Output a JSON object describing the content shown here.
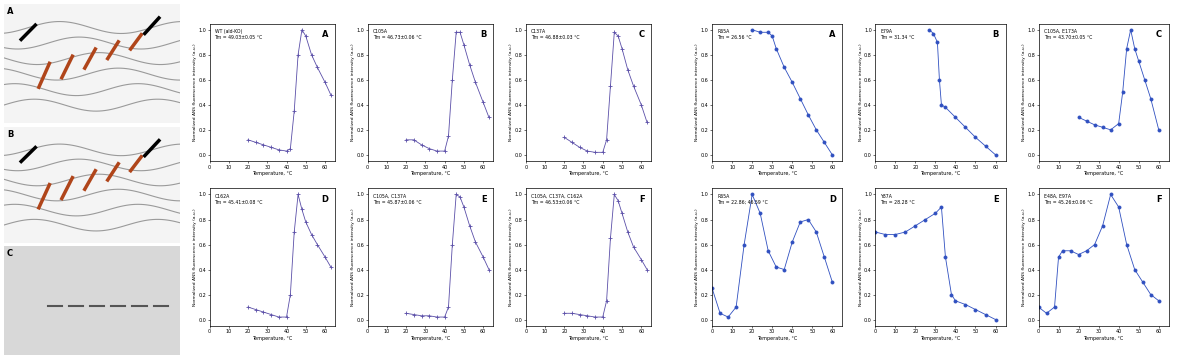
{
  "images": [
    {
      "panel": "A"
    },
    {
      "panel": "B"
    },
    {
      "panel": "C"
    }
  ],
  "chart_data": [
    {
      "type": "line",
      "panel": "A",
      "label": "WT (ald-KO)",
      "annotation": "Tm = 49.03±0.05 °C",
      "color": "#5b4fa8",
      "marker": "+",
      "xlabel": "Temperature, °C",
      "ylabel": "Normalized ANS fluorescence intensity (a.u.)",
      "x": [
        20,
        24,
        28,
        32,
        36,
        40,
        42,
        44,
        46,
        48,
        50,
        53,
        56,
        60,
        63
      ],
      "values": [
        0.12,
        0.1,
        0.08,
        0.06,
        0.04,
        0.03,
        0.05,
        0.35,
        0.8,
        1.0,
        0.95,
        0.8,
        0.7,
        0.58,
        0.48
      ],
      "xlim": [
        0,
        65
      ],
      "xticks": [
        0,
        10,
        20,
        30,
        40,
        50,
        60
      ],
      "ylim": [
        -0.05,
        1.05
      ],
      "yticks": [
        {
          "value": 0,
          "label": "0.0"
        },
        {
          "value": 0.2,
          "label": "0.2"
        },
        {
          "value": 0.4,
          "label": "0.4"
        },
        {
          "value": 0.6,
          "label": "0.6"
        },
        {
          "value": 0.8,
          "label": "0.8"
        },
        {
          "value": 1.0,
          "label": "1.0"
        }
      ]
    },
    {
      "type": "line",
      "panel": "B",
      "label": "C105A",
      "annotation": "Tm = 46.73±0.06 °C",
      "color": "#5b4fa8",
      "marker": "+",
      "xlabel": "Temperature, °C",
      "ylabel": "Normalized ANS fluorescence intensity (a.u.)",
      "x": [
        20,
        24,
        28,
        32,
        36,
        40,
        42,
        44,
        46,
        48,
        50,
        53,
        56,
        60,
        63
      ],
      "values": [
        0.12,
        0.12,
        0.08,
        0.05,
        0.03,
        0.03,
        0.15,
        0.6,
        0.98,
        0.98,
        0.88,
        0.72,
        0.58,
        0.42,
        0.3
      ],
      "xlim": [
        0,
        65
      ],
      "xticks": [
        0,
        10,
        20,
        30,
        40,
        50,
        60
      ],
      "ylim": [
        -0.05,
        1.05
      ],
      "yticks": [
        {
          "value": 0,
          "label": "0.0"
        },
        {
          "value": 0.2,
          "label": "0.2"
        },
        {
          "value": 0.4,
          "label": "0.4"
        },
        {
          "value": 0.6,
          "label": "0.6"
        },
        {
          "value": 0.8,
          "label": "0.8"
        },
        {
          "value": 1.0,
          "label": "1.0"
        }
      ]
    },
    {
      "type": "line",
      "panel": "C",
      "label": "C137A",
      "annotation": "Tm = 46.88±0.03 °C",
      "color": "#5b4fa8",
      "marker": "+",
      "xlabel": "Temperature, °C",
      "ylabel": "Normalized ANS fluorescence intensity (a.u.)",
      "x": [
        20,
        24,
        28,
        32,
        36,
        40,
        42,
        44,
        46,
        48,
        50,
        53,
        56,
        60,
        63
      ],
      "values": [
        0.14,
        0.1,
        0.06,
        0.03,
        0.02,
        0.02,
        0.12,
        0.55,
        0.98,
        0.95,
        0.85,
        0.68,
        0.55,
        0.4,
        0.26
      ],
      "xlim": [
        0,
        65
      ],
      "xticks": [
        0,
        10,
        20,
        30,
        40,
        50,
        60
      ],
      "ylim": [
        -0.05,
        1.05
      ],
      "yticks": [
        {
          "value": 0,
          "label": "0.0"
        },
        {
          "value": 0.2,
          "label": "0.2"
        },
        {
          "value": 0.4,
          "label": "0.4"
        },
        {
          "value": 0.6,
          "label": "0.6"
        },
        {
          "value": 0.8,
          "label": "0.8"
        },
        {
          "value": 1.0,
          "label": "1.0"
        }
      ]
    },
    {
      "type": "line",
      "panel": "D",
      "label": "C162A",
      "annotation": "Tm = 45.41±0.08 °C",
      "color": "#5b4fa8",
      "marker": "+",
      "xlabel": "Temperature, °C",
      "ylabel": "Normalized ANS fluorescence intensity (a.u.)",
      "x": [
        20,
        24,
        28,
        32,
        36,
        40,
        42,
        44,
        46,
        48,
        50,
        53,
        56,
        60,
        63
      ],
      "values": [
        0.1,
        0.08,
        0.06,
        0.04,
        0.02,
        0.02,
        0.2,
        0.7,
        1.0,
        0.88,
        0.78,
        0.68,
        0.6,
        0.5,
        0.42
      ],
      "xlim": [
        0,
        65
      ],
      "xticks": [
        0,
        10,
        20,
        30,
        40,
        50,
        60
      ],
      "ylim": [
        -0.05,
        1.05
      ],
      "yticks": [
        {
          "value": 0,
          "label": "0.0"
        },
        {
          "value": 0.2,
          "label": "0.2"
        },
        {
          "value": 0.4,
          "label": "0.4"
        },
        {
          "value": 0.6,
          "label": "0.6"
        },
        {
          "value": 0.8,
          "label": "0.8"
        },
        {
          "value": 1.0,
          "label": "1.0"
        }
      ]
    },
    {
      "type": "line",
      "panel": "E",
      "label": "C105A, C137A",
      "annotation": "Tm = 45.87±0.06 °C",
      "color": "#5b4fa8",
      "marker": "+",
      "xlabel": "Temperature, °C",
      "ylabel": "Normalized ANS fluorescence intensity (a.u.)",
      "x": [
        20,
        24,
        28,
        32,
        36,
        40,
        42,
        44,
        46,
        48,
        50,
        53,
        56,
        60,
        63
      ],
      "values": [
        0.05,
        0.04,
        0.03,
        0.03,
        0.02,
        0.02,
        0.1,
        0.6,
        1.0,
        0.98,
        0.9,
        0.75,
        0.62,
        0.5,
        0.4
      ],
      "xlim": [
        0,
        65
      ],
      "xticks": [
        0,
        10,
        20,
        30,
        40,
        50,
        60
      ],
      "ylim": [
        -0.05,
        1.05
      ],
      "yticks": [
        {
          "value": 0,
          "label": "0.0"
        },
        {
          "value": 0.2,
          "label": "0.2"
        },
        {
          "value": 0.4,
          "label": "0.4"
        },
        {
          "value": 0.6,
          "label": "0.6"
        },
        {
          "value": 0.8,
          "label": "0.8"
        },
        {
          "value": 1.0,
          "label": "1.0"
        }
      ]
    },
    {
      "type": "line",
      "panel": "F",
      "label": "C105A, C137A, C162A",
      "annotation": "Tm = 46.53±0.06 °C",
      "color": "#5b4fa8",
      "marker": "+",
      "xlabel": "Temperature, °C",
      "ylabel": "Normalized ANS fluorescence intensity (a.u.)",
      "x": [
        20,
        24,
        28,
        32,
        36,
        40,
        42,
        44,
        46,
        48,
        50,
        53,
        56,
        60,
        63
      ],
      "values": [
        0.05,
        0.05,
        0.04,
        0.03,
        0.02,
        0.02,
        0.15,
        0.65,
        1.0,
        0.95,
        0.85,
        0.7,
        0.58,
        0.48,
        0.4
      ],
      "xlim": [
        0,
        65
      ],
      "xticks": [
        0,
        10,
        20,
        30,
        40,
        50,
        60
      ],
      "ylim": [
        -0.05,
        1.05
      ],
      "yticks": [
        {
          "value": 0,
          "label": "0.0"
        },
        {
          "value": 0.2,
          "label": "0.2"
        },
        {
          "value": 0.4,
          "label": "0.4"
        },
        {
          "value": 0.6,
          "label": "0.6"
        },
        {
          "value": 0.8,
          "label": "0.8"
        },
        {
          "value": 1.0,
          "label": "1.0"
        }
      ]
    },
    {
      "type": "line",
      "panel": "A",
      "label": "R65A",
      "annotation": "Tm = 26.56 °C",
      "color": "#3050c0",
      "marker": "o",
      "xlabel": "Temperature, °C",
      "ylabel": "Normalized ANS fluorescence intensity (a.u.)",
      "x": [
        20,
        24,
        28,
        30,
        32,
        36,
        40,
        44,
        48,
        52,
        56,
        60
      ],
      "values": [
        1.0,
        0.98,
        0.98,
        0.95,
        0.85,
        0.7,
        0.58,
        0.45,
        0.32,
        0.2,
        0.1,
        0.0
      ],
      "xlim": [
        0,
        65
      ],
      "xticks": [
        0,
        10,
        20,
        30,
        40,
        50,
        60
      ],
      "ylim": [
        -0.05,
        1.05
      ],
      "yticks": [
        {
          "value": 0,
          "label": "0.0"
        },
        {
          "value": 0.2,
          "label": "0.2"
        },
        {
          "value": 0.4,
          "label": "0.4"
        },
        {
          "value": 0.6,
          "label": "0.6"
        },
        {
          "value": 0.8,
          "label": "0.8"
        },
        {
          "value": 1.0,
          "label": "1.0"
        }
      ]
    },
    {
      "type": "line",
      "panel": "B",
      "label": "E79A",
      "annotation": "Tm = 31.34 °C",
      "color": "#3050c0",
      "marker": "o",
      "xlabel": "Temperature, °C",
      "ylabel": "Normalized ANS fluorescence intensity (a.u.)",
      "x": [
        27,
        29,
        31,
        32,
        33,
        35,
        40,
        45,
        50,
        55,
        60
      ],
      "values": [
        1.0,
        0.97,
        0.9,
        0.6,
        0.4,
        0.38,
        0.3,
        0.22,
        0.14,
        0.07,
        0.0
      ],
      "xlim": [
        0,
        65
      ],
      "xticks": [
        0,
        10,
        20,
        30,
        40,
        50,
        60
      ],
      "ylim": [
        -0.05,
        1.05
      ],
      "yticks": [
        {
          "value": 0,
          "label": "0.0"
        },
        {
          "value": 0.2,
          "label": "0.2"
        },
        {
          "value": 0.4,
          "label": "0.4"
        },
        {
          "value": 0.6,
          "label": "0.6"
        },
        {
          "value": 0.8,
          "label": "0.8"
        },
        {
          "value": 1.0,
          "label": "1.0"
        }
      ]
    },
    {
      "type": "line",
      "panel": "C",
      "label": "C105A, E173A",
      "annotation": "Tm = 43.70±0.05 °C",
      "color": "#3050c0",
      "marker": "o",
      "xlabel": "Temperature, °C",
      "ylabel": "Normalized ANS fluorescence intensity (a.u.)",
      "x": [
        20,
        24,
        28,
        32,
        36,
        40,
        42,
        44,
        46,
        48,
        50,
        53,
        56,
        60
      ],
      "values": [
        0.3,
        0.27,
        0.24,
        0.22,
        0.2,
        0.25,
        0.5,
        0.85,
        1.0,
        0.85,
        0.75,
        0.6,
        0.45,
        0.2
      ],
      "xlim": [
        0,
        65
      ],
      "xticks": [
        0,
        10,
        20,
        30,
        40,
        50,
        60
      ],
      "ylim": [
        -0.05,
        1.05
      ],
      "yticks": [
        {
          "value": 0,
          "label": "0.0"
        },
        {
          "value": 0.2,
          "label": "0.2"
        },
        {
          "value": 0.4,
          "label": "0.4"
        },
        {
          "value": 0.6,
          "label": "0.6"
        },
        {
          "value": 0.8,
          "label": "0.8"
        },
        {
          "value": 1.0,
          "label": "1.0"
        }
      ]
    },
    {
      "type": "line",
      "panel": "D",
      "label": "R65A",
      "annotation": "Tm = 22.86; 46.59 °C",
      "color": "#3050c0",
      "marker": "o",
      "xlabel": "Temperature, °C",
      "ylabel": "Normalized ANS fluorescence intensity (a.u.)",
      "x": [
        0,
        4,
        8,
        12,
        16,
        20,
        24,
        28,
        32,
        36,
        40,
        44,
        48,
        52,
        56,
        60
      ],
      "values": [
        0.25,
        0.05,
        0.02,
        0.1,
        0.6,
        1.0,
        0.85,
        0.55,
        0.42,
        0.4,
        0.62,
        0.78,
        0.8,
        0.7,
        0.5,
        0.3
      ],
      "xlim": [
        0,
        65
      ],
      "xticks": [
        0,
        10,
        20,
        30,
        40,
        50,
        60
      ],
      "ylim": [
        -0.05,
        1.05
      ],
      "yticks": [
        {
          "value": 0,
          "label": "0.0"
        },
        {
          "value": 0.2,
          "label": "0.2"
        },
        {
          "value": 0.4,
          "label": "0.4"
        },
        {
          "value": 0.6,
          "label": "0.6"
        },
        {
          "value": 0.8,
          "label": "0.8"
        },
        {
          "value": 1.0,
          "label": "1.0"
        }
      ]
    },
    {
      "type": "line",
      "panel": "E",
      "label": "Y87A",
      "annotation": "Tm = 28.28 °C",
      "color": "#3050c0",
      "marker": "o",
      "xlabel": "Temperature, °C",
      "ylabel": "Normalized ANS fluorescence intensity (a.u.)",
      "x": [
        0,
        5,
        10,
        15,
        20,
        25,
        30,
        33,
        35,
        38,
        40,
        45,
        50,
        55,
        60
      ],
      "values": [
        0.7,
        0.68,
        0.68,
        0.7,
        0.75,
        0.8,
        0.85,
        0.9,
        0.5,
        0.2,
        0.15,
        0.12,
        0.08,
        0.04,
        0.0
      ],
      "xlim": [
        0,
        65
      ],
      "xticks": [
        0,
        10,
        20,
        30,
        40,
        50,
        60
      ],
      "ylim": [
        -0.05,
        1.05
      ],
      "yticks": [
        {
          "value": 0,
          "label": "0.0"
        },
        {
          "value": 0.2,
          "label": "0.2"
        },
        {
          "value": 0.4,
          "label": "0.4"
        },
        {
          "value": 0.6,
          "label": "0.6"
        },
        {
          "value": 0.8,
          "label": "0.8"
        },
        {
          "value": 1.0,
          "label": "1.0"
        }
      ]
    },
    {
      "type": "line",
      "panel": "F",
      "label": "E48A, E97A",
      "annotation": "Tm = 45.26±0.06 °C",
      "color": "#3050c0",
      "marker": "o",
      "xlabel": "Temperature, °C",
      "ylabel": "Normalized ANS fluorescence intensity (a.u.)",
      "x": [
        0,
        4,
        8,
        10,
        12,
        16,
        20,
        24,
        28,
        32,
        36,
        40,
        44,
        48,
        52,
        56,
        60
      ],
      "values": [
        0.1,
        0.05,
        0.1,
        0.5,
        0.55,
        0.55,
        0.52,
        0.55,
        0.6,
        0.75,
        1.0,
        0.9,
        0.6,
        0.4,
        0.3,
        0.2,
        0.15
      ],
      "xlim": [
        0,
        65
      ],
      "xticks": [
        0,
        10,
        20,
        30,
        40,
        50,
        60
      ],
      "ylim": [
        -0.05,
        1.05
      ],
      "yticks": [
        {
          "value": 0,
          "label": "0.0"
        },
        {
          "value": 0.2,
          "label": "0.2"
        },
        {
          "value": 0.4,
          "label": "0.4"
        },
        {
          "value": 0.6,
          "label": "0.6"
        },
        {
          "value": 0.8,
          "label": "0.8"
        },
        {
          "value": 1.0,
          "label": "1.0"
        }
      ]
    }
  ]
}
